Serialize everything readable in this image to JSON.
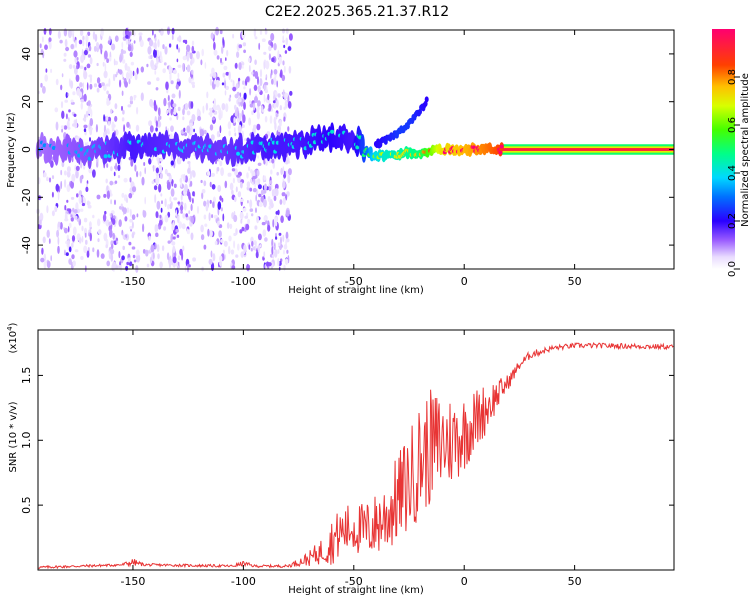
{
  "title": "C2E2.2025.365.21.37.R12",
  "chart_data": [
    {
      "type": "heatmap",
      "name": "spectrogram",
      "xlabel": "Height of straight line (km)",
      "ylabel": "Frequency (Hz)",
      "xlim": [
        -193,
        95
      ],
      "ylim": [
        -50,
        50
      ],
      "xticks": [
        -150,
        -100,
        -50,
        0,
        50
      ],
      "xtick_labels": [
        "-150",
        "-100",
        "-50",
        "0",
        "50"
      ],
      "yticks": [
        -40,
        -20,
        0,
        20,
        40
      ],
      "ytick_labels": [
        "-40",
        "-20",
        "0",
        "20",
        "40"
      ],
      "grid": false,
      "colorbar": {
        "label": "Normalized spectral amplitude",
        "range": [
          0,
          1
        ],
        "ticks": [
          0.0,
          0.2,
          0.4,
          0.6,
          0.8
        ],
        "tick_labels": [
          "0.0",
          "0.2",
          "0.4",
          "0.6",
          "0.8"
        ]
      },
      "ridge": {
        "description_free": true,
        "x": [
          -193,
          -170,
          -150,
          -130,
          -110,
          -90,
          -75,
          -60,
          -50,
          -45,
          -40,
          -30,
          -20,
          -10,
          0,
          10,
          17,
          95
        ],
        "frequency": [
          0,
          -1,
          1,
          2,
          -1,
          1,
          2,
          5,
          5,
          0,
          -3,
          -2,
          -1,
          0,
          0,
          0,
          0,
          0
        ],
        "amplitude": [
          0.12,
          0.15,
          0.2,
          0.18,
          0.17,
          0.2,
          0.2,
          0.22,
          0.2,
          0.3,
          0.45,
          0.5,
          0.55,
          0.8,
          0.85,
          0.9,
          0.95,
          0.97
        ]
      },
      "branch": {
        "x": [
          -40,
          -35,
          -30,
          -25,
          -20,
          -17
        ],
        "frequency": [
          2,
          4,
          7,
          11,
          16,
          20
        ],
        "amplitude": [
          0.2,
          0.22,
          0.25,
          0.25,
          0.22,
          0.2
        ]
      },
      "noise_x_range": [
        -193,
        -78
      ]
    },
    {
      "type": "line",
      "name": "snr",
      "xlabel": "Height of straight line (km)",
      "ylabel": "SNR (10 * v/v)",
      "scale_label": "(x10",
      "scale_exponent": "4",
      "scale_suffix": ")",
      "xlim": [
        -193,
        95
      ],
      "ylim": [
        0,
        1.85
      ],
      "xticks": [
        -150,
        -100,
        -50,
        0,
        50
      ],
      "xtick_labels": [
        "-150",
        "-100",
        "-50",
        "0",
        "50"
      ],
      "yticks": [
        0.5,
        1.0,
        1.5
      ],
      "ytick_labels": [
        "0.5",
        "1.0",
        "1.5"
      ],
      "line_color": "#e83434",
      "grid": false,
      "series": [
        {
          "name": "SNR",
          "envelope_x": [
            -193,
            -155,
            -150,
            -145,
            -105,
            -100,
            -95,
            -80,
            -75,
            -70,
            -65,
            -60,
            -55,
            -50,
            -45,
            -40,
            -35,
            -30,
            -25,
            -20,
            -15,
            -10,
            -5,
            0,
            5,
            10,
            15,
            20,
            25,
            30,
            40,
            50,
            60,
            95
          ],
          "envelope_mean": [
            0.02,
            0.04,
            0.06,
            0.04,
            0.03,
            0.05,
            0.03,
            0.03,
            0.06,
            0.09,
            0.14,
            0.22,
            0.3,
            0.33,
            0.3,
            0.35,
            0.42,
            0.55,
            0.68,
            0.85,
            0.95,
            0.98,
            1.0,
            1.06,
            1.15,
            1.25,
            1.35,
            1.45,
            1.58,
            1.66,
            1.71,
            1.73,
            1.73,
            1.72
          ],
          "envelope_spread": [
            0.01,
            0.01,
            0.03,
            0.01,
            0.01,
            0.02,
            0.01,
            0.01,
            0.03,
            0.06,
            0.1,
            0.18,
            0.2,
            0.2,
            0.22,
            0.25,
            0.3,
            0.35,
            0.4,
            0.45,
            0.45,
            0.4,
            0.35,
            0.3,
            0.25,
            0.2,
            0.12,
            0.06,
            0.04,
            0.03,
            0.02,
            0.02,
            0.02,
            0.02
          ]
        }
      ]
    }
  ]
}
